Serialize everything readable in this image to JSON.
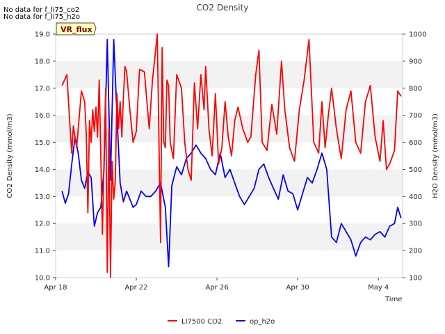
{
  "notes": [
    "No data for f_li75_co2",
    "No data for f_li75_h2o"
  ],
  "site_badge": "VR_flux",
  "chart_data": {
    "type": "line",
    "title": "CO2 Density",
    "xlabel": "Time",
    "ylabel_left": "CO2 Density (mmol/m3)",
    "ylabel_right": "H2O Density (mmol/m3)",
    "x_range": [
      0,
      21.5
    ],
    "x_ticks": [
      {
        "x": 0,
        "label": "Apr 18"
      },
      {
        "x": 5,
        "label": "Apr 22"
      },
      {
        "x": 10,
        "label": "Apr 26"
      },
      {
        "x": 15,
        "label": "Apr 30"
      },
      {
        "x": 20,
        "label": "May 4"
      }
    ],
    "ylim_left": [
      10.0,
      19.0
    ],
    "left_ticks": [
      "10.0",
      "11.0",
      "12.0",
      "13.0",
      "14.0",
      "15.0",
      "16.0",
      "17.0",
      "18.0",
      "19.0"
    ],
    "ylim_right": [
      100,
      1000
    ],
    "right_ticks": [
      "100",
      "200",
      "300",
      "400",
      "500",
      "600",
      "700",
      "800",
      "900",
      "1000"
    ],
    "grid": "horizontal bands",
    "legend_position": "bottom-center",
    "series": [
      {
        "name": "LI7500 CO2",
        "color": "#ff0000",
        "axis": "left",
        "x": [
          0.4,
          0.7,
          0.9,
          1.0,
          1.1,
          1.3,
          1.6,
          1.8,
          1.9,
          2.0,
          2.1,
          2.2,
          2.3,
          2.4,
          2.5,
          2.6,
          2.7,
          2.9,
          3.1,
          3.2,
          3.3,
          3.4,
          3.5,
          3.6,
          3.7,
          3.8,
          3.9,
          4.0,
          4.1,
          4.2,
          4.3,
          4.4,
          4.6,
          4.8,
          5.0,
          5.2,
          5.5,
          5.8,
          6.0,
          6.3,
          6.5,
          6.6,
          6.7,
          6.8,
          6.9,
          7.0,
          7.1,
          7.3,
          7.5,
          7.8,
          8.0,
          8.2,
          8.4,
          8.6,
          8.8,
          9.0,
          9.2,
          9.3,
          9.5,
          9.7,
          9.9,
          10.1,
          10.3,
          10.5,
          10.7,
          10.9,
          11.1,
          11.3,
          11.6,
          11.9,
          12.1,
          12.4,
          12.6,
          12.8,
          13.1,
          13.4,
          13.7,
          14.0,
          14.2,
          14.5,
          14.8,
          15.1,
          15.4,
          15.7,
          16.0,
          16.3,
          16.5,
          16.7,
          16.9,
          17.1,
          17.4,
          17.7,
          18.0,
          18.3,
          18.6,
          18.9,
          19.2,
          19.5,
          19.8,
          20.1,
          20.3,
          20.5,
          20.7,
          21.0,
          21.2,
          21.4
        ],
        "values": [
          17.1,
          17.5,
          15.5,
          14.6,
          15.6,
          14.8,
          16.9,
          16.5,
          15.3,
          12.4,
          15.8,
          15.0,
          16.2,
          15.4,
          16.3,
          15.2,
          17.3,
          11.6,
          17.0,
          10.2,
          15.5,
          10.0,
          14.3,
          12.9,
          13.6,
          16.8,
          15.5,
          16.5,
          15.2,
          16.7,
          17.8,
          17.6,
          16.2,
          15.0,
          15.4,
          17.7,
          17.6,
          15.5,
          17.3,
          19.0,
          11.3,
          18.5,
          15.0,
          14.8,
          17.3,
          17.1,
          15.0,
          14.4,
          17.5,
          17.0,
          15.0,
          14.0,
          13.6,
          17.2,
          15.5,
          17.5,
          16.2,
          17.8,
          15.5,
          14.5,
          16.8,
          14.2,
          14.8,
          16.5,
          15.2,
          14.5,
          15.8,
          16.3,
          15.5,
          15.0,
          15.2,
          17.5,
          18.4,
          15.0,
          14.7,
          16.4,
          15.3,
          18.0,
          16.2,
          14.8,
          14.3,
          16.2,
          17.3,
          18.8,
          15.0,
          14.6,
          16.5,
          14.8,
          16.0,
          17.0,
          15.5,
          14.4,
          16.2,
          16.9,
          15.0,
          14.6,
          16.5,
          17.1,
          15.2,
          14.3,
          15.8,
          14.0,
          14.2,
          14.7,
          16.9,
          16.7
        ]
      },
      {
        "name": "op_h2o",
        "color": "#0000ff",
        "axis": "right",
        "x": [
          0.4,
          0.6,
          0.8,
          1.0,
          1.2,
          1.4,
          1.6,
          1.8,
          2.0,
          2.2,
          2.4,
          2.6,
          2.8,
          3.0,
          3.2,
          3.4,
          3.6,
          3.8,
          4.0,
          4.2,
          4.4,
          4.6,
          4.8,
          5.0,
          5.3,
          5.6,
          5.9,
          6.2,
          6.5,
          6.8,
          7.0,
          7.2,
          7.5,
          7.8,
          8.1,
          8.4,
          8.7,
          9.0,
          9.3,
          9.6,
          9.9,
          10.2,
          10.5,
          10.8,
          11.1,
          11.4,
          11.7,
          12.0,
          12.3,
          12.6,
          12.9,
          13.2,
          13.5,
          13.8,
          14.1,
          14.4,
          14.7,
          15.0,
          15.3,
          15.6,
          15.9,
          16.2,
          16.5,
          16.8,
          17.1,
          17.4,
          17.7,
          18.0,
          18.3,
          18.6,
          18.9,
          19.2,
          19.5,
          19.8,
          20.1,
          20.4,
          20.7,
          21.0,
          21.2,
          21.4
        ],
        "values": [
          420,
          375,
          410,
          520,
          620,
          560,
          460,
          430,
          490,
          470,
          290,
          340,
          360,
          500,
          980,
          460,
          980,
          700,
          450,
          380,
          420,
          390,
          360,
          370,
          420,
          400,
          400,
          420,
          450,
          360,
          140,
          440,
          510,
          480,
          540,
          560,
          590,
          560,
          540,
          500,
          480,
          560,
          470,
          500,
          450,
          400,
          370,
          400,
          430,
          500,
          520,
          470,
          430,
          390,
          480,
          420,
          410,
          350,
          410,
          470,
          450,
          500,
          560,
          500,
          250,
          230,
          300,
          270,
          240,
          180,
          230,
          250,
          240,
          260,
          270,
          250,
          290,
          300,
          360,
          320
        ]
      }
    ]
  }
}
